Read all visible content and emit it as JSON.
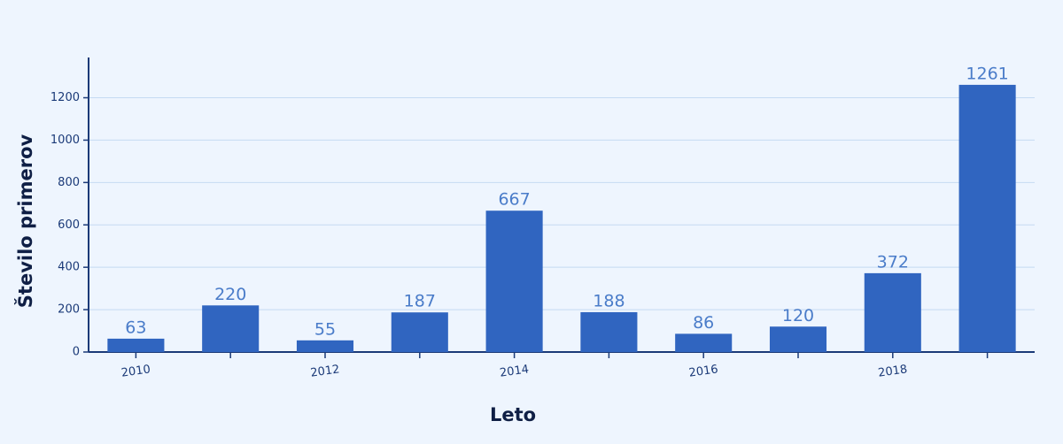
{
  "chart_data": {
    "type": "bar",
    "xlabel": "Leto",
    "ylabel": "Število primerov",
    "categories": [
      "2010",
      null,
      "2012",
      null,
      "2014",
      null,
      "2016",
      null,
      "2018",
      null
    ],
    "values": [
      63,
      220,
      55,
      187,
      667,
      188,
      86,
      120,
      372,
      1261
    ],
    "color": "#3065c0",
    "ylim": [
      0,
      1390
    ],
    "yticks": [
      0,
      200,
      400,
      600,
      800,
      1000,
      1200
    ],
    "grid": true
  }
}
